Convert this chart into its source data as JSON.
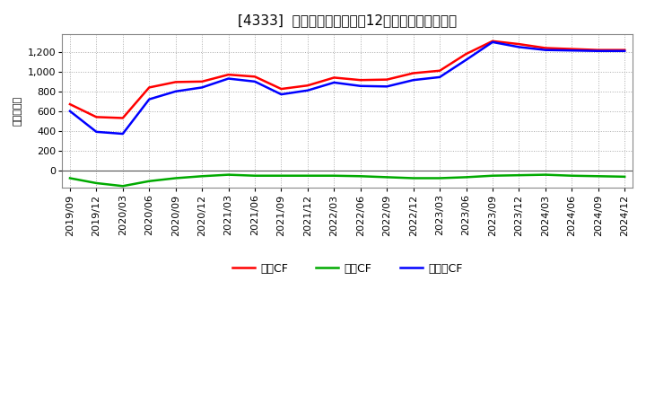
{
  "title": "[4333]  キャッシュフローの12か月移動合計の推移",
  "ylabel": "（百万円）",
  "background_color": "#ffffff",
  "grid_color": "#aaaaaa",
  "plot_bg_color": "#ffffff",
  "x_labels": [
    "2019/09",
    "2019/12",
    "2020/03",
    "2020/06",
    "2020/09",
    "2020/12",
    "2021/03",
    "2021/06",
    "2021/09",
    "2021/12",
    "2022/03",
    "2022/06",
    "2022/09",
    "2022/12",
    "2023/03",
    "2023/06",
    "2023/09",
    "2023/12",
    "2024/03",
    "2024/06",
    "2024/09",
    "2024/12"
  ],
  "eigyo_cf": [
    670,
    540,
    530,
    840,
    895,
    900,
    970,
    950,
    825,
    860,
    940,
    915,
    920,
    985,
    1010,
    1180,
    1310,
    1280,
    1240,
    1230,
    1220,
    1220
  ],
  "toshi_cf": [
    -80,
    -130,
    -160,
    -110,
    -80,
    -60,
    -45,
    -55,
    -55,
    -55,
    -55,
    -60,
    -70,
    -80,
    -80,
    -70,
    -55,
    -50,
    -45,
    -55,
    -60,
    -65
  ],
  "free_cf": [
    600,
    390,
    370,
    720,
    800,
    840,
    930,
    900,
    770,
    810,
    890,
    855,
    850,
    915,
    945,
    1120,
    1300,
    1250,
    1220,
    1215,
    1210,
    1210
  ],
  "color_eigyo": "#ff0000",
  "color_toshi": "#00aa00",
  "color_free": "#0000ff",
  "label_eigyo": "営業CF",
  "label_toshi": "投資CF",
  "label_free": "フリーCF",
  "ylim_min": -180,
  "ylim_max": 1380,
  "yticks": [
    0,
    200,
    400,
    600,
    800,
    1000,
    1200
  ],
  "title_fontsize": 11,
  "axis_fontsize": 8,
  "legend_fontsize": 9,
  "linewidth": 1.8
}
